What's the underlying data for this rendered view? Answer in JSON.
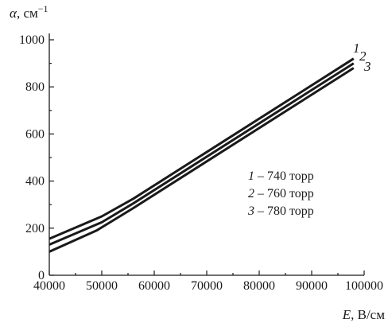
{
  "chart_data": {
    "type": "line",
    "title": "",
    "xlabel": "E, В/см",
    "ylabel": "α, см−1",
    "ylabel_symbol": "α",
    "ylabel_unit": "см",
    "ylabel_exponent": "−1",
    "xlabel_symbol": "E",
    "xlabel_unit": "В/см",
    "xlim": [
      40000,
      100000
    ],
    "ylim": [
      0,
      1000
    ],
    "xticks": [
      40000,
      50000,
      60000,
      70000,
      80000,
      90000,
      100000
    ],
    "yticks": [
      0,
      200,
      400,
      600,
      800,
      1000
    ],
    "xtick_labels": [
      "40000",
      "50000",
      "60000",
      "70000",
      "80000",
      "90000",
      "100000"
    ],
    "ytick_labels": [
      "0",
      "200",
      "400",
      "600",
      "800",
      "1000"
    ],
    "grid": false,
    "legend_position": "center-right",
    "series": [
      {
        "name": "1",
        "legend_label": "1 – 740 торр",
        "legend_pressure": "740 торр",
        "x": [
          40000,
          50000,
          56000,
          98000
        ],
        "y": [
          155,
          250,
          325,
          920
        ]
      },
      {
        "name": "2",
        "legend_label": "2 – 760 торр",
        "legend_pressure": "760 торр",
        "x": [
          40000,
          50000,
          56000,
          98000
        ],
        "y": [
          130,
          225,
          305,
          900
        ]
      },
      {
        "name": "3",
        "legend_label": "3 – 780 торр",
        "legend_pressure": "780 торр",
        "x": [
          40000,
          49000,
          56000,
          98000
        ],
        "y": [
          100,
          190,
          285,
          880
        ]
      }
    ]
  }
}
